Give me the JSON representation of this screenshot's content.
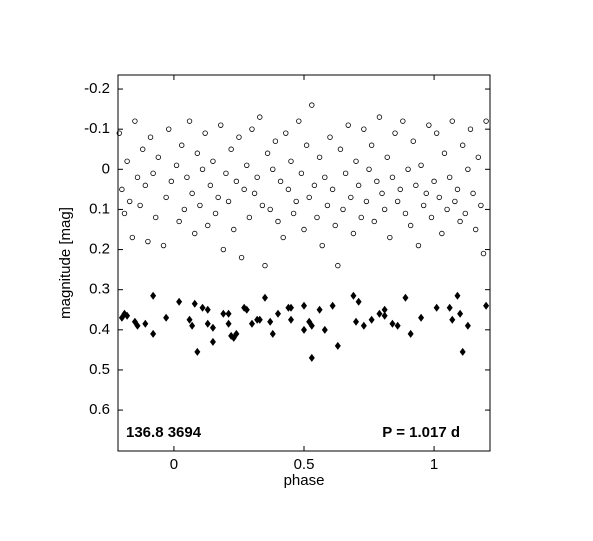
{
  "chart_data": {
    "type": "scatter",
    "xlabel": "phase",
    "ylabel": "magnitude  [mag]",
    "annotations": [
      "136.8 3694",
      "P = 1.017 d"
    ],
    "xlim": [
      -0.215,
      1.215
    ],
    "ylim": [
      -0.235,
      0.702
    ],
    "y_inverted": true,
    "xticks": [
      0,
      0.5,
      1
    ],
    "yticks": [
      -0.2,
      -0.1,
      0,
      0.1,
      0.2,
      0.3,
      0.4,
      0.5,
      0.6
    ],
    "series": [
      {
        "marker": "open-circle",
        "color": "#000000",
        "x": [
          -0.21,
          -0.2,
          -0.19,
          -0.18,
          -0.17,
          -0.16,
          -0.15,
          -0.14,
          -0.13,
          -0.12,
          -0.11,
          -0.1,
          -0.09,
          -0.08,
          -0.07,
          -0.06,
          -0.04,
          -0.03,
          -0.02,
          -0.01,
          0.01,
          0.02,
          0.03,
          0.04,
          0.05,
          0.06,
          0.07,
          0.08,
          0.09,
          0.1,
          0.11,
          0.12,
          0.13,
          0.14,
          0.15,
          0.16,
          0.17,
          0.18,
          0.19,
          0.2,
          0.21,
          0.22,
          0.23,
          0.24,
          0.25,
          0.26,
          0.27,
          0.28,
          0.29,
          0.3,
          0.31,
          0.32,
          0.33,
          0.34,
          0.35,
          0.36,
          0.37,
          0.38,
          0.39,
          0.4,
          0.41,
          0.42,
          0.43,
          0.44,
          0.45,
          0.46,
          0.47,
          0.48,
          0.49,
          0.5,
          0.51,
          0.52,
          0.53,
          0.54,
          0.55,
          0.56,
          0.57,
          0.58,
          0.59,
          0.6,
          0.61,
          0.62,
          0.63,
          0.64,
          0.65,
          0.66,
          0.67,
          0.68,
          0.69,
          0.7,
          0.71,
          0.72,
          0.73,
          0.74,
          0.75,
          0.76,
          0.77,
          0.78,
          0.79,
          0.8,
          0.81,
          0.82,
          0.83,
          0.84,
          0.85,
          0.86,
          0.87,
          0.88,
          0.89,
          0.9,
          0.91,
          0.92,
          0.93,
          0.94,
          0.95,
          0.96,
          0.97,
          0.98,
          0.99,
          1.0,
          1.01,
          1.02,
          1.03,
          1.04,
          1.05,
          1.06,
          1.07,
          1.08,
          1.09,
          1.1,
          1.11,
          1.12,
          1.13,
          1.14,
          1.15,
          1.16,
          1.17,
          1.18,
          1.19,
          1.2
        ],
        "values": [
          -0.09,
          0.05,
          0.11,
          -0.02,
          0.08,
          0.17,
          -0.12,
          0.02,
          0.09,
          -0.05,
          0.04,
          0.18,
          -0.08,
          0.01,
          0.12,
          -0.03,
          0.19,
          0.07,
          -0.1,
          0.03,
          -0.01,
          0.13,
          -0.06,
          0.1,
          0.02,
          -0.12,
          0.06,
          0.16,
          -0.04,
          0.09,
          0.0,
          -0.09,
          0.14,
          0.04,
          -0.02,
          0.11,
          0.07,
          -0.11,
          0.2,
          0.01,
          0.08,
          -0.05,
          0.15,
          0.03,
          -0.08,
          0.22,
          0.05,
          -0.01,
          0.12,
          -0.1,
          0.06,
          0.02,
          -0.13,
          0.09,
          0.24,
          -0.04,
          0.1,
          0.0,
          -0.07,
          0.13,
          0.03,
          0.17,
          -0.09,
          0.05,
          -0.02,
          0.11,
          0.08,
          -0.12,
          0.01,
          0.15,
          -0.06,
          0.07,
          -0.16,
          0.04,
          0.12,
          -0.03,
          0.19,
          0.02,
          0.09,
          -0.08,
          0.05,
          0.14,
          0.24,
          -0.05,
          0.1,
          0.01,
          -0.11,
          0.07,
          0.16,
          -0.02,
          0.04,
          0.12,
          -0.1,
          0.08,
          0.0,
          -0.06,
          0.13,
          0.03,
          -0.13,
          0.06,
          0.1,
          -0.03,
          0.17,
          0.02,
          -0.09,
          0.08,
          0.05,
          -0.12,
          0.11,
          0.0,
          0.14,
          -0.07,
          0.04,
          0.19,
          -0.01,
          0.09,
          0.06,
          -0.11,
          0.12,
          0.03,
          -0.09,
          0.07,
          0.16,
          -0.04,
          0.1,
          0.02,
          -0.12,
          0.08,
          0.05,
          0.13,
          -0.06,
          0.11,
          0.0,
          -0.1,
          0.06,
          0.15,
          -0.03,
          0.09,
          0.21,
          -0.12
        ]
      },
      {
        "marker": "filled-diamond",
        "color": "#000000",
        "x": [
          -0.2,
          -0.19,
          -0.18,
          -0.15,
          -0.14,
          -0.11,
          -0.08,
          -0.08,
          -0.03,
          0.02,
          0.06,
          0.07,
          0.08,
          0.09,
          0.11,
          0.13,
          0.13,
          0.15,
          0.15,
          0.19,
          0.21,
          0.21,
          0.22,
          0.23,
          0.24,
          0.27,
          0.28,
          0.3,
          0.32,
          0.33,
          0.35,
          0.37,
          0.38,
          0.4,
          0.44,
          0.45,
          0.45,
          0.5,
          0.5,
          0.52,
          0.53,
          0.53,
          0.56,
          0.58,
          0.61,
          0.63,
          0.69,
          0.7,
          0.71,
          0.73,
          0.76,
          0.79,
          0.81,
          0.81,
          0.84,
          0.86,
          0.89,
          0.91,
          0.95,
          1.01,
          1.06,
          1.07,
          1.09,
          1.1,
          1.11,
          1.13,
          1.2
        ],
        "values": [
          0.37,
          0.36,
          0.365,
          0.38,
          0.39,
          0.385,
          0.41,
          0.315,
          0.37,
          0.33,
          0.375,
          0.39,
          0.335,
          0.455,
          0.345,
          0.35,
          0.385,
          0.395,
          0.43,
          0.36,
          0.36,
          0.385,
          0.415,
          0.42,
          0.41,
          0.345,
          0.35,
          0.385,
          0.375,
          0.375,
          0.32,
          0.38,
          0.41,
          0.36,
          0.345,
          0.345,
          0.375,
          0.34,
          0.4,
          0.38,
          0.39,
          0.47,
          0.35,
          0.4,
          0.34,
          0.44,
          0.315,
          0.38,
          0.33,
          0.39,
          0.375,
          0.36,
          0.365,
          0.35,
          0.385,
          0.39,
          0.32,
          0.41,
          0.37,
          0.345,
          0.345,
          0.375,
          0.315,
          0.36,
          0.455,
          0.39,
          0.34
        ]
      }
    ]
  }
}
